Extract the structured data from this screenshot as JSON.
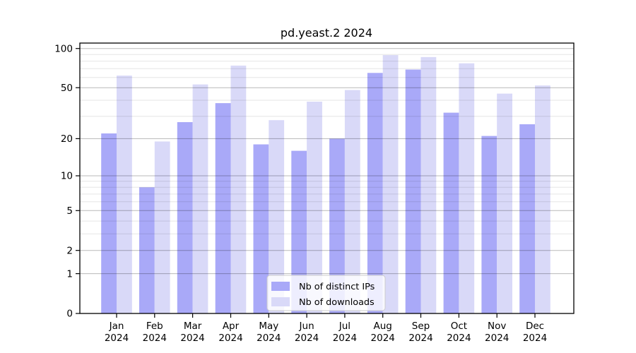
{
  "title": "pd.yeast.2 2024",
  "chart_data": {
    "type": "bar",
    "title": "pd.yeast.2 2024",
    "scale": "log1p",
    "grid": true,
    "legend_position": "lower center",
    "categories": [
      "Jan",
      "Feb",
      "Mar",
      "Apr",
      "May",
      "Jun",
      "Jul",
      "Aug",
      "Sep",
      "Oct",
      "Nov",
      "Dec"
    ],
    "year_label": "2024",
    "series": [
      {
        "name": "Nb of distinct IPs",
        "color": "#a9a9f8",
        "values": [
          22,
          8,
          27,
          38,
          18,
          16,
          20,
          65,
          69,
          32,
          21,
          26
        ]
      },
      {
        "name": "Nb of downloads",
        "color": "#d9d9f8",
        "values": [
          62,
          19,
          53,
          74,
          28,
          39,
          48,
          89,
          86,
          77,
          45,
          52
        ]
      }
    ],
    "xlabel": "",
    "ylabel": "",
    "ylim": [
      0,
      110
    ],
    "y_ticks": [
      0,
      1,
      2,
      5,
      10,
      20,
      50,
      100
    ],
    "y_minor_gridlines": [
      3,
      4,
      6,
      7,
      8,
      9,
      30,
      40,
      60,
      70,
      80,
      90
    ]
  },
  "colors": {
    "background": "#ffffff",
    "axis": "#000000",
    "grid_major": "rgba(0,0,0,0.28)",
    "grid_minor": "rgba(0,0,0,0.10)",
    "legend_bg": "#ffffff",
    "legend_border": "#cccccc"
  }
}
